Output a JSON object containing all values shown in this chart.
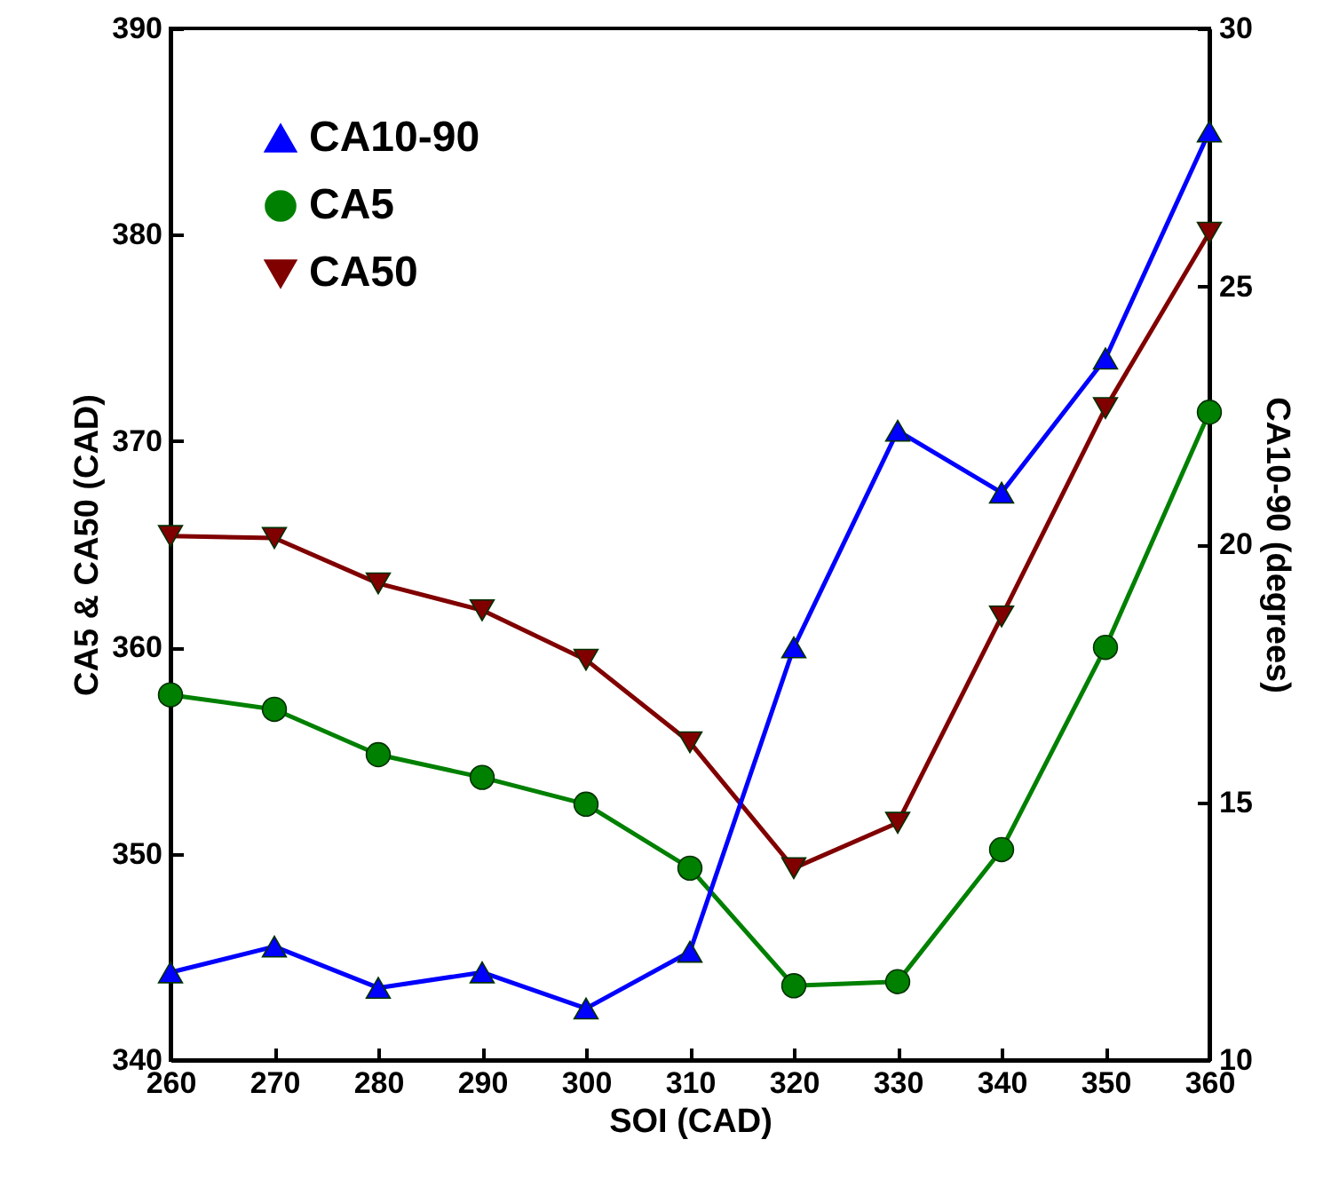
{
  "chart_data": {
    "type": "line",
    "xlabel": "SOI (CAD)",
    "ylabel": "CA5 & CA50 (CAD)",
    "y2label": "CA10-90 (degrees)",
    "x": [
      260,
      270,
      280,
      290,
      300,
      310,
      320,
      330,
      340,
      350,
      360
    ],
    "xlim": [
      260,
      360
    ],
    "xticks": [
      260,
      270,
      280,
      290,
      300,
      310,
      320,
      330,
      340,
      350,
      360
    ],
    "ylim": [
      340,
      390
    ],
    "yticks": [
      340,
      350,
      360,
      370,
      380,
      390
    ],
    "y2lim": [
      10,
      30
    ],
    "y2ticks": [
      10,
      15,
      20,
      25,
      30
    ],
    "legend": "top left",
    "grid": false,
    "line_style": "solid",
    "series": [
      {
        "name": "CA10-90",
        "color": "#0000ff",
        "axis": "y2",
        "marker": "triangle",
        "values": [
          11.7,
          12.2,
          11.4,
          11.7,
          11.0,
          12.1,
          18.0,
          22.2,
          21.0,
          23.6,
          28.0
        ]
      },
      {
        "name": "CA5",
        "color": "#008000",
        "marker": "circle",
        "values": [
          357.7,
          357.0,
          354.8,
          353.7,
          352.4,
          349.3,
          343.6,
          343.8,
          350.2,
          360.0,
          371.4
        ]
      },
      {
        "name": "CA50",
        "color": "#800000",
        "marker": "triangle-down",
        "values": [
          365.4,
          365.3,
          363.1,
          361.8,
          359.4,
          355.4,
          349.3,
          351.5,
          361.5,
          371.6,
          380.1
        ]
      }
    ]
  }
}
